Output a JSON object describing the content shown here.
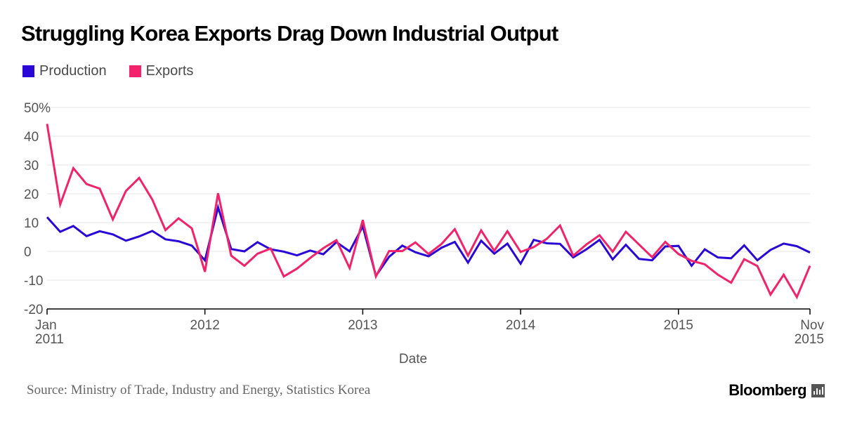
{
  "title": "Struggling Korea Exports Drag Down Industrial Output",
  "source": "Source: Ministry of Trade, Industry and Energy, Statistics Korea",
  "brand": "Bloomberg",
  "colors": {
    "production": "#2a07d6",
    "exports": "#f2226b",
    "grid": "#e6e6e6",
    "axis": "#000000"
  },
  "legend": [
    {
      "name": "Production",
      "color": "#2a07d6"
    },
    {
      "name": "Exports",
      "color": "#f2226b"
    }
  ],
  "chart_data": {
    "type": "line",
    "title": "Struggling Korea Exports Drag Down Industrial Output",
    "xlabel": "Date",
    "ylabel": "",
    "x_start": "2011-01",
    "x_end": "2015-11",
    "ylim": [
      -20,
      50
    ],
    "yticks": [
      -20,
      -10,
      0,
      10,
      20,
      30,
      40,
      50
    ],
    "ytick_labels": [
      "-20",
      "-10",
      "0",
      "10",
      "20",
      "30",
      "40",
      "50%"
    ],
    "xticks": [
      {
        "date": "2011-01",
        "line1": "Jan",
        "line2": "2011",
        "align": "start"
      },
      {
        "date": "2012-01",
        "line1": "2012",
        "line2": "",
        "align": "middle"
      },
      {
        "date": "2013-01",
        "line1": "2013",
        "line2": "",
        "align": "middle"
      },
      {
        "date": "2014-01",
        "line1": "2014",
        "line2": "",
        "align": "middle"
      },
      {
        "date": "2015-01",
        "line1": "2015",
        "line2": "",
        "align": "middle"
      },
      {
        "date": "2015-11",
        "line1": "Nov",
        "line2": "2015",
        "align": "end"
      }
    ],
    "grid": true,
    "legend_position": "top-left",
    "x": [
      "2011-01",
      "2011-02",
      "2011-03",
      "2011-04",
      "2011-05",
      "2011-06",
      "2011-07",
      "2011-08",
      "2011-09",
      "2011-10",
      "2011-11",
      "2011-12",
      "2012-01",
      "2012-02",
      "2012-03",
      "2012-04",
      "2012-05",
      "2012-06",
      "2012-07",
      "2012-08",
      "2012-09",
      "2012-10",
      "2012-11",
      "2012-12",
      "2013-01",
      "2013-02",
      "2013-03",
      "2013-04",
      "2013-05",
      "2013-06",
      "2013-07",
      "2013-08",
      "2013-09",
      "2013-10",
      "2013-11",
      "2013-12",
      "2014-01",
      "2014-02",
      "2014-03",
      "2014-04",
      "2014-05",
      "2014-06",
      "2014-07",
      "2014-08",
      "2014-09",
      "2014-10",
      "2014-11",
      "2014-12",
      "2015-01",
      "2015-02",
      "2015-03",
      "2015-04",
      "2015-05",
      "2015-06",
      "2015-07",
      "2015-08",
      "2015-09",
      "2015-10",
      "2015-11"
    ],
    "series": [
      {
        "name": "Production",
        "color": "#2a07d6",
        "values": [
          11.9,
          6.8,
          8.8,
          5.3,
          7.0,
          5.9,
          3.7,
          5.2,
          7.1,
          4.2,
          3.5,
          2.0,
          -3.1,
          15.3,
          0.8,
          0.0,
          3.2,
          0.7,
          -0.1,
          -1.4,
          0.3,
          -1.0,
          3.2,
          0.0,
          8.7,
          -8.5,
          -1.9,
          2.0,
          -0.3,
          -1.7,
          1.3,
          3.3,
          -3.9,
          3.7,
          -0.8,
          2.7,
          -4.3,
          4.0,
          2.8,
          2.6,
          -2.1,
          0.7,
          4.0,
          -2.8,
          2.3,
          -2.6,
          -3.1,
          1.7,
          1.9,
          -5.0,
          0.7,
          -2.1,
          -2.4,
          2.1,
          -3.1,
          0.5,
          2.7,
          1.8,
          -0.4
        ]
      },
      {
        "name": "Exports",
        "color": "#f2226b",
        "values": [
          44.3,
          16.3,
          28.9,
          23.4,
          21.8,
          11.1,
          21.0,
          25.5,
          18.0,
          7.4,
          11.5,
          8.0,
          -7.1,
          20.2,
          -1.5,
          -5.0,
          -0.8,
          1.0,
          -8.7,
          -6.0,
          -2.3,
          1.1,
          3.9,
          -5.8,
          10.9,
          -8.7,
          0.1,
          0.1,
          3.1,
          -0.9,
          2.6,
          7.7,
          -1.5,
          7.3,
          0.2,
          7.0,
          -0.2,
          1.5,
          4.4,
          9.0,
          -1.5,
          2.4,
          5.6,
          -0.1,
          6.8,
          2.4,
          -2.0,
          3.3,
          -0.9,
          -3.3,
          -4.5,
          -8.1,
          -10.9,
          -2.7,
          -5.1,
          -15.0,
          -8.1,
          -15.9,
          -5.0
        ]
      }
    ]
  }
}
